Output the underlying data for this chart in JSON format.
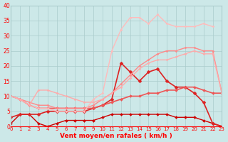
{
  "title": "",
  "xlabel": "Vent moyen/en rafales ( km/h )",
  "background_color": "#cce8e8",
  "grid_color": "#aacccc",
  "xlim": [
    0,
    23
  ],
  "ylim": [
    0,
    40
  ],
  "yticks": [
    0,
    5,
    10,
    15,
    20,
    25,
    30,
    35,
    40
  ],
  "xticks": [
    0,
    1,
    2,
    3,
    4,
    5,
    6,
    7,
    8,
    9,
    10,
    11,
    12,
    13,
    14,
    15,
    16,
    17,
    18,
    19,
    20,
    21,
    22,
    23
  ],
  "series": [
    {
      "x": [
        0,
        1,
        2,
        3,
        4,
        5,
        6,
        7,
        8,
        9,
        10,
        11,
        12,
        13,
        14,
        15,
        16,
        17,
        18,
        19,
        20,
        21,
        22,
        23
      ],
      "y": [
        1,
        4,
        4,
        1,
        0,
        1,
        2,
        2,
        2,
        2,
        3,
        4,
        4,
        4,
        4,
        4,
        4,
        4,
        3,
        3,
        3,
        2,
        1,
        0
      ],
      "color": "#cc0000",
      "lw": 1.0,
      "marker": "D",
      "ms": 2.0
    },
    {
      "x": [
        0,
        1,
        2,
        3,
        4,
        5,
        6,
        7,
        8,
        9,
        10,
        11,
        12,
        13,
        14,
        15,
        16,
        17,
        18,
        19,
        20,
        21,
        22,
        23
      ],
      "y": [
        3,
        4,
        4,
        4,
        5,
        5,
        5,
        5,
        5,
        6,
        7,
        9,
        21,
        18,
        15,
        18,
        19,
        15,
        13,
        13,
        11,
        8,
        1,
        0
      ],
      "color": "#dd2222",
      "lw": 1.2,
      "marker": "D",
      "ms": 2.5
    },
    {
      "x": [
        0,
        1,
        2,
        3,
        4,
        5,
        6,
        7,
        8,
        9,
        10,
        11,
        12,
        13,
        14,
        15,
        16,
        17,
        18,
        19,
        20,
        21,
        22,
        23
      ],
      "y": [
        10,
        9,
        7,
        6,
        6,
        6,
        6,
        6,
        6,
        6,
        7,
        8,
        9,
        10,
        10,
        11,
        11,
        12,
        12,
        13,
        13,
        12,
        11,
        11
      ],
      "color": "#ee5555",
      "lw": 1.2,
      "marker": "D",
      "ms": 2.0
    },
    {
      "x": [
        0,
        1,
        2,
        3,
        4,
        5,
        6,
        7,
        8,
        9,
        10,
        11,
        12,
        13,
        14,
        15,
        16,
        17,
        18,
        19,
        20,
        21,
        22,
        23
      ],
      "y": [
        10,
        9,
        8,
        7,
        7,
        6,
        6,
        6,
        6,
        7,
        9,
        11,
        14,
        17,
        20,
        22,
        24,
        25,
        25,
        26,
        26,
        25,
        25,
        11
      ],
      "color": "#ff8888",
      "lw": 1.0,
      "marker": "D",
      "ms": 1.5
    },
    {
      "x": [
        0,
        1,
        2,
        3,
        4,
        5,
        6,
        7,
        8,
        9,
        10,
        11,
        12,
        13,
        14,
        15,
        16,
        17,
        18,
        19,
        20,
        21,
        22
      ],
      "y": [
        10,
        9,
        7,
        6,
        6,
        5,
        5,
        5,
        5,
        9,
        11,
        25,
        32,
        36,
        36,
        34,
        37,
        34,
        33,
        33,
        33,
        34,
        33
      ],
      "color": "#ffbbbb",
      "lw": 1.0,
      "marker": "D",
      "ms": 1.5
    },
    {
      "x": [
        0,
        1,
        2,
        3,
        4,
        5,
        6,
        7,
        8,
        9,
        10,
        11,
        12,
        13,
        14,
        15,
        16,
        17,
        18,
        19,
        20,
        21,
        22,
        23
      ],
      "y": [
        10,
        9,
        7,
        12,
        12,
        11,
        10,
        9,
        8,
        8,
        9,
        11,
        13,
        16,
        19,
        21,
        22,
        22,
        23,
        24,
        25,
        24,
        24,
        11
      ],
      "color": "#ffaaaa",
      "lw": 1.0,
      "marker": "D",
      "ms": 1.5
    }
  ]
}
